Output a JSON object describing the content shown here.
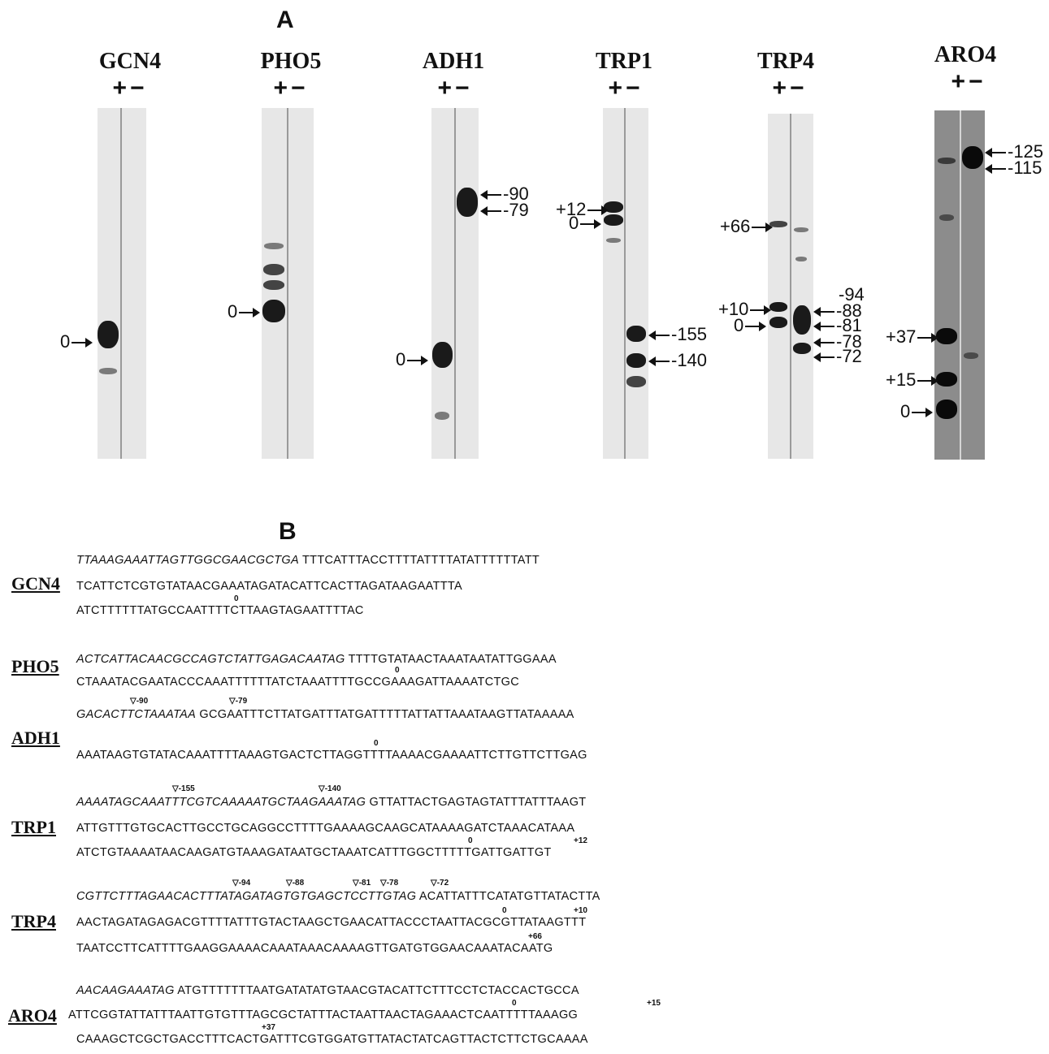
{
  "panelA": {
    "label": "A"
  },
  "panelB": {
    "label": "B"
  },
  "plus_minus": "+−",
  "gels": [
    {
      "gene": "GCN4",
      "markers": [
        {
          "label": "0",
          "side": "left"
        }
      ]
    },
    {
      "gene": "PHO5",
      "markers": [
        {
          "label": "0",
          "side": "left"
        }
      ]
    },
    {
      "gene": "ADH1",
      "markers": [
        {
          "label": "-90",
          "side": "right"
        },
        {
          "label": "-79",
          "side": "right"
        },
        {
          "label": "0",
          "side": "left"
        }
      ]
    },
    {
      "gene": "TRP1",
      "markers": [
        {
          "label": "+12",
          "side": "left"
        },
        {
          "label": "0",
          "side": "left"
        },
        {
          "label": "-155",
          "side": "right"
        },
        {
          "label": "-140",
          "side": "right"
        }
      ]
    },
    {
      "gene": "TRP4",
      "markers": [
        {
          "label": "+66",
          "side": "left"
        },
        {
          "label": "+10",
          "side": "left"
        },
        {
          "label": "0",
          "side": "left"
        },
        {
          "label": "-94",
          "side": "right"
        },
        {
          "label": "-88",
          "side": "right"
        },
        {
          "label": "-81",
          "side": "right"
        },
        {
          "label": "-78",
          "side": "right"
        },
        {
          "label": "-72",
          "side": "right"
        }
      ]
    },
    {
      "gene": "ARO4",
      "markers": [
        {
          "label": "-125",
          "side": "right"
        },
        {
          "label": "-115",
          "side": "right"
        },
        {
          "label": "+37",
          "side": "left"
        },
        {
          "label": "+15",
          "side": "left"
        },
        {
          "label": "0",
          "side": "left"
        }
      ]
    }
  ],
  "sequences": [
    {
      "gene": "GCN4",
      "lines": [
        {
          "italic": "TTAAAGAAATTAGTTGGCGAACGCTGA",
          "plain": " TTTCATTTACCTTTTATTTTATATTTTTTATT"
        },
        {
          "italic": "",
          "plain": "TCATTCTCGTGTATAACGAAATAGATACATTCACTTAGATAAGAATTTA"
        },
        {
          "italic": "",
          "plain": "ATCTTTTTTATGCCAATTTTCTTAAGTAGAATTTTAC"
        }
      ],
      "positions": [
        "0"
      ]
    },
    {
      "gene": "PHO5",
      "lines": [
        {
          "italic": "ACTCATTACAACGCCAGTCTATTGAGACAATAG",
          "plain": " TTTTGTATAACTAAATAATATTGGAAA"
        },
        {
          "italic": "",
          "plain": "CTAAATACGAATACCCAAATTTTTTATCTAAATTTTGCCGAAAGATTAAAATCTGC"
        }
      ],
      "positions": [
        "0"
      ]
    },
    {
      "gene": "ADH1",
      "lines": [
        {
          "italic": "GACACTTCTAAATAA",
          "plain": " GCGAATTTCTTATGATTTATGATTTTTATTATTAAATAAGTTATAAAAA"
        },
        {
          "italic": "",
          "plain": "AAATAAGTGTATACAAATTTTAAAGTGACTCTTAGGTTTTAAAACGAAAATTCTTGTTCTTGAG"
        }
      ],
      "positions": [
        "-90",
        "-79",
        "0"
      ]
    },
    {
      "gene": "TRP1",
      "lines": [
        {
          "italic": "AAAATAGCAAATTTCGTCAAAAATGCTAAGAAATAG",
          "plain": " GTTATTACTGAGTAGTATTTATTTAAGT"
        },
        {
          "italic": "",
          "plain": "ATTGTTTGTGCACTTGCCTGCAGGCCTTTTGAAAAGCAAGCATAAAAGATCTAAACATAAA"
        },
        {
          "italic": "",
          "plain": "ATCTGTAAAATAACAAGATGTAAAGATAATGCTAAATCATTTGGCTTTTTGATTGATTGT"
        }
      ],
      "positions": [
        "-155",
        "-140",
        "0",
        "+12"
      ]
    },
    {
      "gene": "TRP4",
      "lines": [
        {
          "italic": "CGTTCTTTAGAACACTTTATAGATAGTGTGAGCTCCTTGTAG",
          "plain": " ACATTATTTCATATGTTATACTTA"
        },
        {
          "italic": "",
          "plain": "AACTAGATAGAGACGTTTTATTTGTACTAAGCTGAACATTACCCTAATTACGCGTTATAAGTTT"
        },
        {
          "italic": "",
          "plain": "TAATCCTTCATTTTGAAGGAAAACAAATAAACAAAAGTTGATGTGGAACAAATACAATG"
        }
      ],
      "positions": [
        "-94",
        "-88",
        "-81",
        "-78",
        "-72",
        "0",
        "+10",
        "+66"
      ]
    },
    {
      "gene": "ARO4",
      "lines": [
        {
          "italic": "AACAAGAAATAG",
          "plain": " ATGTTTTTTTAATGATATATGTAACGTACATTCTTTCCTCTACCACTGCCA"
        },
        {
          "italic": "",
          "plain": "ATTCGGTATTATTTAATTGTGTTTAGCGCTATTTACTAATTAACTAGAAACTCAATTTTTAAAGG"
        },
        {
          "italic": "",
          "plain": "CAAAGCTCGCTGACCTTTCACTGATTTCGTGGATGTTATACTATCAGTTACTCTTCTGCAAAA"
        }
      ],
      "positions": [
        "0",
        "+15",
        "+37"
      ]
    }
  ]
}
